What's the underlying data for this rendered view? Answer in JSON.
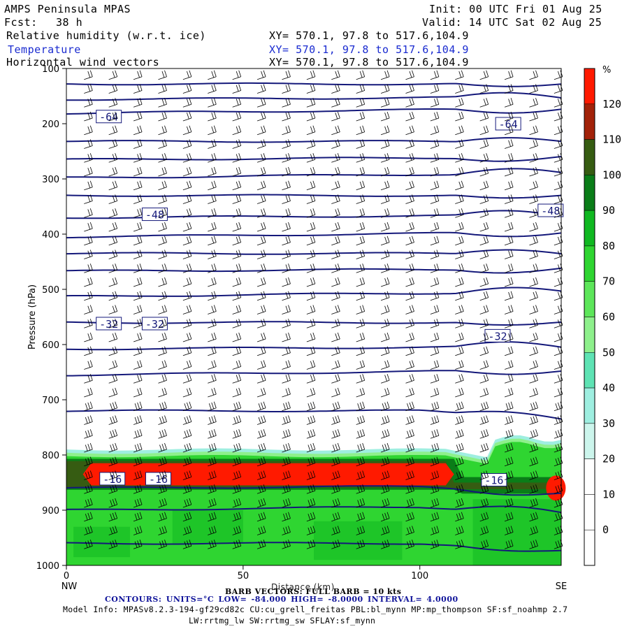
{
  "header": {
    "title": "AMPS Peninsula MPAS",
    "init": "Init: 00 UTC Fri 01 Aug 25",
    "fcst_label": "Fcst:",
    "fcst_value": "38 h",
    "valid": "Valid: 14 UTC Sat 02 Aug 25",
    "fields": [
      {
        "name": "Relative humidity (w.r.t. ice)",
        "xy": "XY= 570.1, 97.8 to 517.6,104.9",
        "color": "#000000"
      },
      {
        "name": "Temperature",
        "xy": "XY= 570.1, 97.8 to 517.6,104.9",
        "color": "#1a2bd0"
      },
      {
        "name": "Horizontal wind vectors",
        "xy": "XY= 570.1, 97.8 to 517.6,104.9",
        "color": "#000000"
      }
    ]
  },
  "footer": {
    "barb_line": "BARB VECTORS: FULL BARB = 10 kts",
    "distance_label": "Distance (km)",
    "contours_line": "CONTOURS: UNITS=°C LOW= -84.000 HIGH= -8.0000 INTERVAL= 4.0000",
    "model_info": "Model Info: MPASv8.2.3-194-gf29cd82c CU:cu_grell_freitas PBL:bl_mynn MP:mp_thompson SF:sf_noahmp 2.7",
    "model_info2": "LW:rrtmg_lw SW:rrtmg_sw SFLAY:sf_mynn"
  },
  "chart_data": {
    "type": "heatmap",
    "description_fields": [
      "relative humidity shading",
      "temperature contours",
      "wind barbs"
    ],
    "x": {
      "label": "Distance (km)",
      "range": [
        0,
        140
      ],
      "ticks": [
        0,
        50,
        100
      ],
      "left_end": "NW",
      "right_end": "SE"
    },
    "y": {
      "label": "Pressure (hPa)",
      "range": [
        1000,
        100
      ],
      "ticks": [
        100,
        200,
        300,
        400,
        500,
        600,
        700,
        800,
        900,
        1000
      ]
    },
    "colorbar": {
      "unit": "%",
      "levels": [
        0,
        10,
        20,
        30,
        40,
        50,
        60,
        70,
        80,
        90,
        100,
        110,
        120
      ],
      "colors": [
        "#ffffff",
        "#ffffff",
        "#ffffff",
        "#ccf5ec",
        "#9eeee0",
        "#5ee3b4",
        "#8ef08c",
        "#5de65a",
        "#2fd531",
        "#10b821",
        "#0a7d18",
        "#365c12",
        "#a22209",
        "#ff1a00"
      ]
    },
    "rh_layer": {
      "bottom_hpa": 1000,
      "top_hpa": 790,
      "max_band_hpa": [
        815,
        855
      ],
      "max_band_x_km": [
        5,
        108
      ]
    },
    "temperature_contours": {
      "units": "°C",
      "low": -84.0,
      "high": -8.0,
      "interval": 4.0,
      "labels": [
        {
          "value": -64,
          "x_km": 12,
          "p_hpa": 187
        },
        {
          "value": -64,
          "x_km": 125,
          "p_hpa": 200
        },
        {
          "value": -48,
          "x_km": 25,
          "p_hpa": 364
        },
        {
          "value": -48,
          "x_km": 137,
          "p_hpa": 357
        },
        {
          "value": -32,
          "x_km": 12,
          "p_hpa": 562
        },
        {
          "value": -32,
          "x_km": 25,
          "p_hpa": 562
        },
        {
          "value": -32,
          "x_km": 122,
          "p_hpa": 584
        },
        {
          "value": -16,
          "x_km": 13,
          "p_hpa": 843
        },
        {
          "value": -16,
          "x_km": 26,
          "p_hpa": 843
        },
        {
          "value": -16,
          "x_km": 121,
          "p_hpa": 845
        }
      ],
      "levels_hpa_left": [
        128,
        156,
        181,
        232,
        265,
        298,
        330,
        370,
        405,
        435,
        467,
        513,
        560,
        608,
        655,
        720,
        860,
        900,
        960
      ]
    },
    "wind_barbs": {
      "full_barb_kts": 10,
      "columns_km": [
        5,
        12,
        19,
        26,
        33,
        40,
        47,
        54,
        61,
        68,
        75,
        82,
        89,
        96,
        103,
        110,
        117,
        124,
        131,
        138
      ]
    },
    "grid": false,
    "legend_position": "right"
  }
}
